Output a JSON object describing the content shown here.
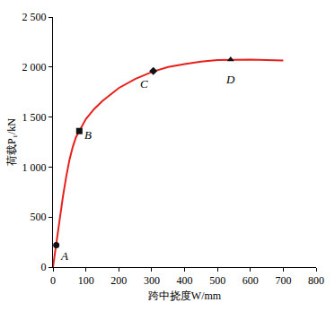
{
  "chart_data": {
    "type": "line",
    "x_label": "跨中挠度W/mm",
    "y_label": "荷载P₁/kN",
    "series": [
      {
        "color": "#e8201c",
        "x": [
          0,
          5,
          10,
          20,
          30,
          40,
          50,
          60,
          70,
          80,
          100,
          125,
          150,
          200,
          250,
          300,
          350,
          400,
          450,
          500,
          550,
          600,
          650,
          700
        ],
        "values": [
          0,
          120,
          220,
          450,
          700,
          900,
          1070,
          1200,
          1300,
          1360,
          1480,
          1580,
          1660,
          1790,
          1880,
          1950,
          2000,
          2030,
          2055,
          2070,
          2075,
          2075,
          2070,
          2065
        ]
      }
    ],
    "annotations": [
      {
        "text": "A",
        "x": 10,
        "y": 220,
        "marker": "circle"
      },
      {
        "text": "B",
        "x": 80,
        "y": 1360,
        "marker": "square"
      },
      {
        "text": "C",
        "x": 305,
        "y": 1960,
        "marker": "diamond"
      },
      {
        "text": "D",
        "x": 540,
        "y": 2075,
        "marker": "triangle-up"
      }
    ],
    "xlim": [
      0,
      800
    ],
    "xticks": [
      0,
      100,
      200,
      300,
      400,
      500,
      600,
      700,
      800
    ],
    "ylim": [
      0,
      2500
    ],
    "yticks": [
      0,
      500,
      {
        "value": 1000,
        "label": "1 000"
      },
      {
        "value": 1500,
        "label": "1 500"
      },
      {
        "value": 2000,
        "label": "2 000"
      },
      {
        "value": 2500,
        "label": "2 500"
      }
    ],
    "grid": false
  }
}
